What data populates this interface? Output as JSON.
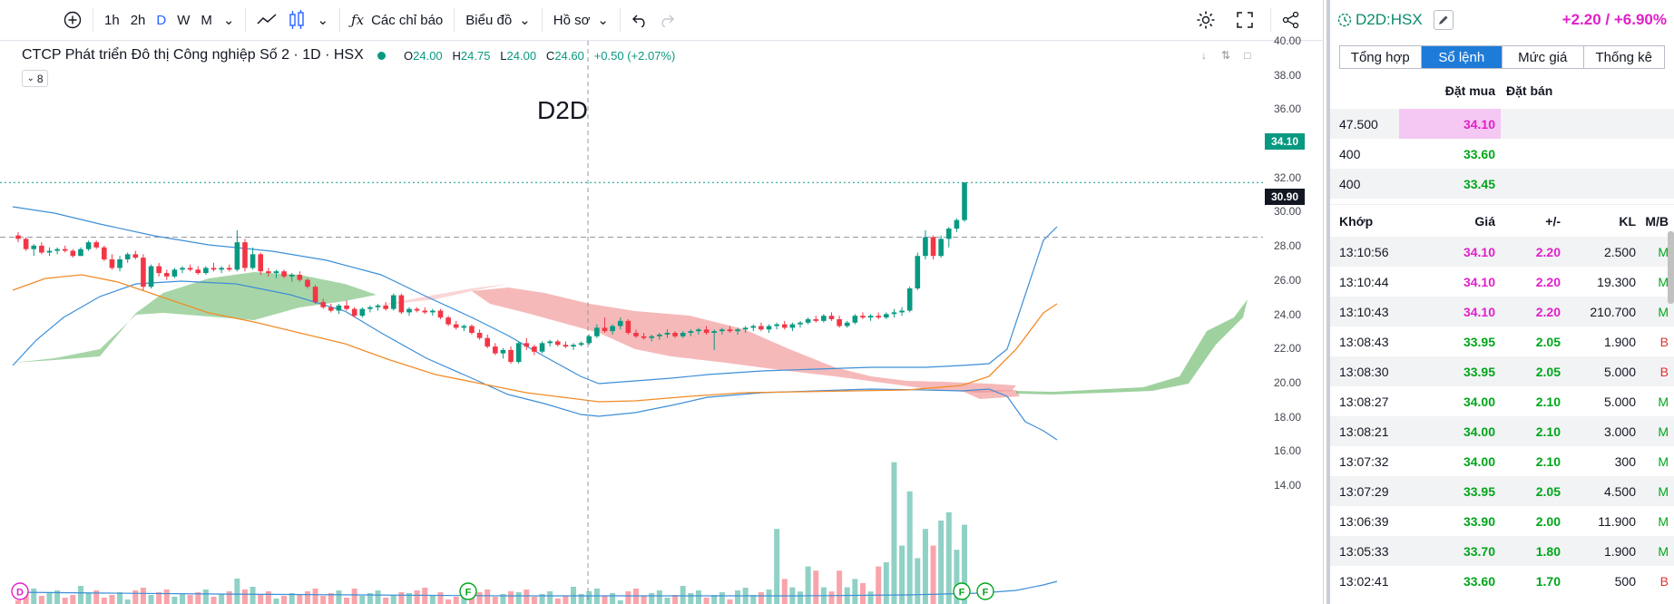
{
  "toolbar": {
    "intervals": [
      "1h",
      "2h",
      "D",
      "W",
      "M"
    ],
    "active_interval": "D",
    "indicators_label": "Các chỉ báo",
    "chart_label": "Biểu đồ",
    "profile_label": "Hồ sơ"
  },
  "legend": {
    "title": "CTCP Phát triển Đô thị Công nghiệp Số 2 · 1D · HSX",
    "o_label": "O",
    "o": "24.00",
    "h_label": "H",
    "h": "24.75",
    "l_label": "L",
    "l": "24.00",
    "c_label": "C",
    "c": "24.60",
    "change": "+0.50 (+2.07%)",
    "indicator_count": "8"
  },
  "watermark": "D2D",
  "price_axis": {
    "ticks": [
      "40.00",
      "38.00",
      "36.00",
      "34.00",
      "32.00",
      "30.00",
      "28.00",
      "26.00",
      "24.00",
      "22.00",
      "20.00",
      "18.00",
      "16.00",
      "14.00"
    ],
    "last_price": "34.10",
    "crosshair_price": "30.90",
    "last_color": "#089981",
    "crosshair_color": "#131722"
  },
  "markers": [
    "D",
    "F",
    "F",
    "F"
  ],
  "chart_data": {
    "type": "candlestick",
    "ylim": [
      13,
      40.5
    ],
    "up_color": "#089981",
    "down_color": "#f23645",
    "candles": [
      [
        31.0,
        31.2,
        30.6,
        30.8
      ],
      [
        30.8,
        30.9,
        30.1,
        30.2
      ],
      [
        30.2,
        30.5,
        29.8,
        30.4
      ],
      [
        30.4,
        30.6,
        29.9,
        30.0
      ],
      [
        30.0,
        30.3,
        29.8,
        30.1
      ],
      [
        30.1,
        30.3,
        29.9,
        30.2
      ],
      [
        30.2,
        30.4,
        30.0,
        30.1
      ],
      [
        30.1,
        30.2,
        29.7,
        29.8
      ],
      [
        29.8,
        30.3,
        29.8,
        30.2
      ],
      [
        30.2,
        30.7,
        30.1,
        30.6
      ],
      [
        30.6,
        30.7,
        30.2,
        30.3
      ],
      [
        30.3,
        30.4,
        29.5,
        29.6
      ],
      [
        29.6,
        29.9,
        29.0,
        29.1
      ],
      [
        29.1,
        29.8,
        28.9,
        29.6
      ],
      [
        29.6,
        30.0,
        29.4,
        29.9
      ],
      [
        29.9,
        30.1,
        29.6,
        29.7
      ],
      [
        29.7,
        29.9,
        27.8,
        28.0
      ],
      [
        28.0,
        29.3,
        27.9,
        29.2
      ],
      [
        29.2,
        29.4,
        28.6,
        28.8
      ],
      [
        28.8,
        29.0,
        28.4,
        28.6
      ],
      [
        28.6,
        29.1,
        28.5,
        29.0
      ],
      [
        29.0,
        29.2,
        28.8,
        29.1
      ],
      [
        29.1,
        29.3,
        28.9,
        29.0
      ],
      [
        29.0,
        29.2,
        28.7,
        28.8
      ],
      [
        28.8,
        29.2,
        28.7,
        29.1
      ],
      [
        29.1,
        29.4,
        28.9,
        29.0
      ],
      [
        29.0,
        29.2,
        28.8,
        29.1
      ],
      [
        29.1,
        29.3,
        28.9,
        29.0
      ],
      [
        29.0,
        31.3,
        28.9,
        30.6
      ],
      [
        30.6,
        30.8,
        28.9,
        29.1
      ],
      [
        29.1,
        30.3,
        29.0,
        29.9
      ],
      [
        29.9,
        30.0,
        28.7,
        28.9
      ],
      [
        28.9,
        29.1,
        28.6,
        28.8
      ],
      [
        28.8,
        29.0,
        28.5,
        28.9
      ],
      [
        28.9,
        29.0,
        28.5,
        28.6
      ],
      [
        28.6,
        28.8,
        28.3,
        28.7
      ],
      [
        28.7,
        28.9,
        28.3,
        28.4
      ],
      [
        28.4,
        28.5,
        27.9,
        28.0
      ],
      [
        28.0,
        28.1,
        27.0,
        27.1
      ],
      [
        27.1,
        27.3,
        26.7,
        26.8
      ],
      [
        26.8,
        27.0,
        26.5,
        26.6
      ],
      [
        26.6,
        27.0,
        26.4,
        26.9
      ],
      [
        26.9,
        27.2,
        26.6,
        26.7
      ],
      [
        26.7,
        26.8,
        26.2,
        26.3
      ],
      [
        26.3,
        26.8,
        26.2,
        26.7
      ],
      [
        26.7,
        26.9,
        26.5,
        26.8
      ],
      [
        26.8,
        27.0,
        26.6,
        26.9
      ],
      [
        26.9,
        27.1,
        26.6,
        26.7
      ],
      [
        26.7,
        27.6,
        26.6,
        27.5
      ],
      [
        27.5,
        27.6,
        26.4,
        26.5
      ],
      [
        26.5,
        26.8,
        26.3,
        26.7
      ],
      [
        26.7,
        26.8,
        26.5,
        26.6
      ],
      [
        26.6,
        26.8,
        26.4,
        26.5
      ],
      [
        26.5,
        26.7,
        26.3,
        26.6
      ],
      [
        26.6,
        26.7,
        26.1,
        26.2
      ],
      [
        26.2,
        26.3,
        25.7,
        25.8
      ],
      [
        25.8,
        26.0,
        25.5,
        25.6
      ],
      [
        25.6,
        25.8,
        25.4,
        25.7
      ],
      [
        25.7,
        25.8,
        25.2,
        25.3
      ],
      [
        25.3,
        25.5,
        24.9,
        25.0
      ],
      [
        25.0,
        25.2,
        24.4,
        24.5
      ],
      [
        24.5,
        24.7,
        24.0,
        24.1
      ],
      [
        24.1,
        24.4,
        23.8,
        24.3
      ],
      [
        24.3,
        24.5,
        23.5,
        23.6
      ],
      [
        23.6,
        24.8,
        23.5,
        24.7
      ],
      [
        24.7,
        25.0,
        24.3,
        24.5
      ],
      [
        24.5,
        24.6,
        24.0,
        24.2
      ],
      [
        24.2,
        24.8,
        24.1,
        24.7
      ],
      [
        24.7,
        24.9,
        24.5,
        24.8
      ],
      [
        24.8,
        24.9,
        24.5,
        24.6
      ],
      [
        24.6,
        24.8,
        24.4,
        24.5
      ],
      [
        24.5,
        24.7,
        24.3,
        24.6
      ],
      [
        24.6,
        24.8,
        24.5,
        24.7
      ],
      [
        24.7,
        25.2,
        24.6,
        25.1
      ],
      [
        25.1,
        25.8,
        25.0,
        25.6
      ],
      [
        25.6,
        26.2,
        25.3,
        25.4
      ],
      [
        25.4,
        25.8,
        25.2,
        25.7
      ],
      [
        25.7,
        26.2,
        25.5,
        26.0
      ],
      [
        26.0,
        26.1,
        25.2,
        25.3
      ],
      [
        25.3,
        25.5,
        25.0,
        25.1
      ],
      [
        25.1,
        25.3,
        24.9,
        25.0
      ],
      [
        25.0,
        25.2,
        24.8,
        25.1
      ],
      [
        25.1,
        25.3,
        24.9,
        25.2
      ],
      [
        25.2,
        25.5,
        25.0,
        25.3
      ],
      [
        25.3,
        25.4,
        25.0,
        25.1
      ],
      [
        25.1,
        25.4,
        25.0,
        25.3
      ],
      [
        25.3,
        25.5,
        25.1,
        25.4
      ],
      [
        25.4,
        25.6,
        25.2,
        25.5
      ],
      [
        25.5,
        25.7,
        25.2,
        25.3
      ],
      [
        25.3,
        25.5,
        24.3,
        25.4
      ],
      [
        25.4,
        25.6,
        25.2,
        25.5
      ],
      [
        25.5,
        25.7,
        25.3,
        25.4
      ],
      [
        25.4,
        25.6,
        25.2,
        25.5
      ],
      [
        25.5,
        25.7,
        25.3,
        25.6
      ],
      [
        25.6,
        25.8,
        25.4,
        25.7
      ],
      [
        25.7,
        25.9,
        25.4,
        25.5
      ],
      [
        25.5,
        25.8,
        25.3,
        25.7
      ],
      [
        25.7,
        25.9,
        25.5,
        25.8
      ],
      [
        25.8,
        26.0,
        25.5,
        25.6
      ],
      [
        25.6,
        25.9,
        25.4,
        25.8
      ],
      [
        25.8,
        26.0,
        25.6,
        25.9
      ],
      [
        25.9,
        26.2,
        25.8,
        26.1
      ],
      [
        26.1,
        26.3,
        25.9,
        26.0
      ],
      [
        26.0,
        26.4,
        25.9,
        26.3
      ],
      [
        26.3,
        26.5,
        26.0,
        26.1
      ],
      [
        26.1,
        26.3,
        25.6,
        25.7
      ],
      [
        25.7,
        26.0,
        25.6,
        25.9
      ],
      [
        25.9,
        26.4,
        25.8,
        26.3
      ],
      [
        26.3,
        26.5,
        26.1,
        26.2
      ],
      [
        26.2,
        26.4,
        26.0,
        26.3
      ],
      [
        26.3,
        26.5,
        26.1,
        26.2
      ],
      [
        26.2,
        26.5,
        26.1,
        26.4
      ],
      [
        26.4,
        26.7,
        26.2,
        26.5
      ],
      [
        26.5,
        26.8,
        26.3,
        26.6
      ],
      [
        26.6,
        28.0,
        26.5,
        27.9
      ],
      [
        27.9,
        30.0,
        27.8,
        29.8
      ],
      [
        29.8,
        31.3,
        29.6,
        30.9
      ],
      [
        30.9,
        31.0,
        29.6,
        29.8
      ],
      [
        29.8,
        31.0,
        29.7,
        30.8
      ],
      [
        30.8,
        31.5,
        30.3,
        31.4
      ],
      [
        31.4,
        32.0,
        31.2,
        31.9
      ],
      [
        31.9,
        34.1,
        31.8,
        34.1
      ]
    ],
    "volume_last": [
      18,
      6,
      4,
      3,
      9,
      8,
      4,
      3,
      8,
      4,
      6,
      5,
      3,
      9,
      10,
      34,
      14,
      27,
      11,
      18,
      14,
      20,
      22,
      13,
      19
    ]
  },
  "side": {
    "symbol": "D2D:HSX",
    "change": "+2.20 / +6.90%",
    "tabs": [
      "Tổng hợp",
      "Sổ lệnh",
      "Mức giá",
      "Thống kê"
    ],
    "active_tab": "Sổ lệnh",
    "book_head_buy": "Đặt mua",
    "book_head_sell": "Đặt bán",
    "book": [
      {
        "vol": "47.500",
        "price": "34.10"
      },
      {
        "vol": "400",
        "price": "33.60"
      },
      {
        "vol": "400",
        "price": "33.45"
      }
    ],
    "match_head": {
      "time": "Khớp",
      "price": "Giá",
      "change": "+/-",
      "volume": "KL",
      "side": "M/B"
    },
    "matches": [
      {
        "time": "13:10:56",
        "price": "34.10",
        "change": "2.20",
        "volume": "2.500",
        "side": "M"
      },
      {
        "time": "13:10:44",
        "price": "34.10",
        "change": "2.20",
        "volume": "19.300",
        "side": "M"
      },
      {
        "time": "13:10:43",
        "price": "34.10",
        "change": "2.20",
        "volume": "210.700",
        "side": "M"
      },
      {
        "time": "13:08:43",
        "price": "33.95",
        "change": "2.05",
        "volume": "1.900",
        "side": "B"
      },
      {
        "time": "13:08:30",
        "price": "33.95",
        "change": "2.05",
        "volume": "5.000",
        "side": "B"
      },
      {
        "time": "13:08:27",
        "price": "34.00",
        "change": "2.10",
        "volume": "5.000",
        "side": "M"
      },
      {
        "time": "13:08:21",
        "price": "34.00",
        "change": "2.10",
        "volume": "3.000",
        "side": "M"
      },
      {
        "time": "13:07:32",
        "price": "34.00",
        "change": "2.10",
        "volume": "300",
        "side": "M"
      },
      {
        "time": "13:07:29",
        "price": "33.95",
        "change": "2.05",
        "volume": "4.500",
        "side": "M"
      },
      {
        "time": "13:06:39",
        "price": "33.90",
        "change": "2.00",
        "volume": "11.900",
        "side": "M"
      },
      {
        "time": "13:05:33",
        "price": "33.70",
        "change": "1.80",
        "volume": "1.900",
        "side": "M"
      },
      {
        "time": "13:02:41",
        "price": "33.60",
        "change": "1.70",
        "volume": "500",
        "side": "B"
      }
    ]
  }
}
